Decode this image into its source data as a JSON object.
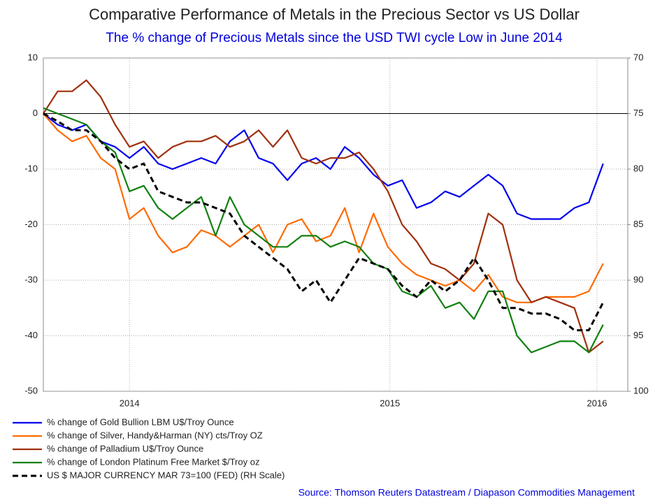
{
  "chart_data": {
    "type": "line",
    "title": "Comparative Performance of Metals in the Precious Sector vs US Dollar",
    "subtitle": "The % change of Precious Metals since the USD TWI cycle Low in June 2014",
    "source": "Source: Thomson Reuters Datastream / Diapason Commodities Management",
    "x": [
      2013.3,
      2013.37,
      2013.44,
      2013.51,
      2013.58,
      2013.65,
      2013.72,
      2013.79,
      2013.86,
      2013.93,
      2014.0,
      2014.07,
      2014.14,
      2014.21,
      2014.28,
      2014.35,
      2014.42,
      2014.49,
      2014.56,
      2014.63,
      2014.7,
      2014.77,
      2014.84,
      2014.91,
      2014.98,
      2015.05,
      2015.12,
      2015.19,
      2015.26,
      2015.33,
      2015.4,
      2015.47,
      2015.54,
      2015.61,
      2015.68,
      2015.75,
      2015.82,
      2015.89,
      2015.96,
      2016.03
    ],
    "xlim": [
      2013.3,
      2016.15
    ],
    "xticks": [
      {
        "value": 2013.72,
        "label": "2014"
      },
      {
        "value": 2014.99,
        "label": "2015"
      },
      {
        "value": 2016.0,
        "label": "2016"
      }
    ],
    "ylim": [
      -50,
      10
    ],
    "yticks": [
      -50,
      -40,
      -30,
      -20,
      -10,
      0,
      10
    ],
    "y2lim": [
      100,
      70
    ],
    "y2ticks": [
      100,
      95,
      90,
      85,
      80,
      75,
      70
    ],
    "grid": true,
    "series": [
      {
        "name": "% change of Gold Bullion LBM U$/Troy Ounce",
        "color": "#0000ee",
        "values": [
          0,
          -2,
          -3,
          -2,
          -5,
          -6,
          -8,
          -6,
          -9,
          -10,
          -9,
          -8,
          -9,
          -5,
          -3,
          -8,
          -9,
          -12,
          -9,
          -8,
          -10,
          -6,
          -8,
          -11,
          -13,
          -12,
          -17,
          -16,
          -14,
          -15,
          -13,
          -11,
          -13,
          -18,
          -19,
          -19,
          -19,
          -17,
          -16,
          -9
        ]
      },
      {
        "name": "% change of Silver, Handy&Harman (NY) cts/Troy OZ",
        "color": "#ff6a00",
        "values": [
          0,
          -3,
          -5,
          -4,
          -8,
          -10,
          -19,
          -17,
          -22,
          -25,
          -24,
          -21,
          -22,
          -24,
          -22,
          -20,
          -25,
          -20,
          -19,
          -23,
          -22,
          -17,
          -25,
          -18,
          -24,
          -27,
          -29,
          -30,
          -31,
          -30,
          -32,
          -29,
          -33,
          -34,
          -34,
          -33,
          -33,
          -33,
          -32,
          -27
        ]
      },
      {
        "name": "% change of Palladium U$/Troy Ounce",
        "color": "#a0300b",
        "values": [
          0,
          4,
          4,
          6,
          3,
          -2,
          -6,
          -5,
          -8,
          -6,
          -5,
          -5,
          -4,
          -6,
          -5,
          -3,
          -6,
          -3,
          -8,
          -9,
          -8,
          -8,
          -7,
          -10,
          -14,
          -20,
          -23,
          -27,
          -28,
          -30,
          -27,
          -18,
          -20,
          -30,
          -34,
          -33,
          -34,
          -35,
          -43,
          -41
        ]
      },
      {
        "name": "% change of London Platinum Free Market $/Troy oz",
        "color": "#108010",
        "values": [
          1,
          0,
          -1,
          -2,
          -5,
          -7,
          -14,
          -13,
          -17,
          -19,
          -17,
          -15,
          -22,
          -15,
          -20,
          -22,
          -24,
          -24,
          -22,
          -22,
          -24,
          -23,
          -24,
          -27,
          -28,
          -32,
          -33,
          -31,
          -35,
          -34,
          -37,
          -32,
          -32,
          -40,
          -43,
          -42,
          -41,
          -41,
          -43,
          -38
        ]
      },
      {
        "name": "US $ MAJOR CURRENCY MAR 73=100 (FED) (RH Scale)",
        "color": "#000000",
        "axis": "y2",
        "dashed": true,
        "values": [
          75,
          75.7,
          76.5,
          76.5,
          77.5,
          79,
          80,
          79.5,
          82,
          82.5,
          83,
          83,
          83.5,
          84,
          86,
          87,
          88,
          89,
          91,
          90,
          92,
          90,
          88,
          88.5,
          89,
          90.5,
          91.5,
          90,
          91,
          90,
          88,
          90,
          92.5,
          92.5,
          93,
          93,
          93.5,
          94.5,
          94.5,
          92
        ]
      }
    ]
  }
}
